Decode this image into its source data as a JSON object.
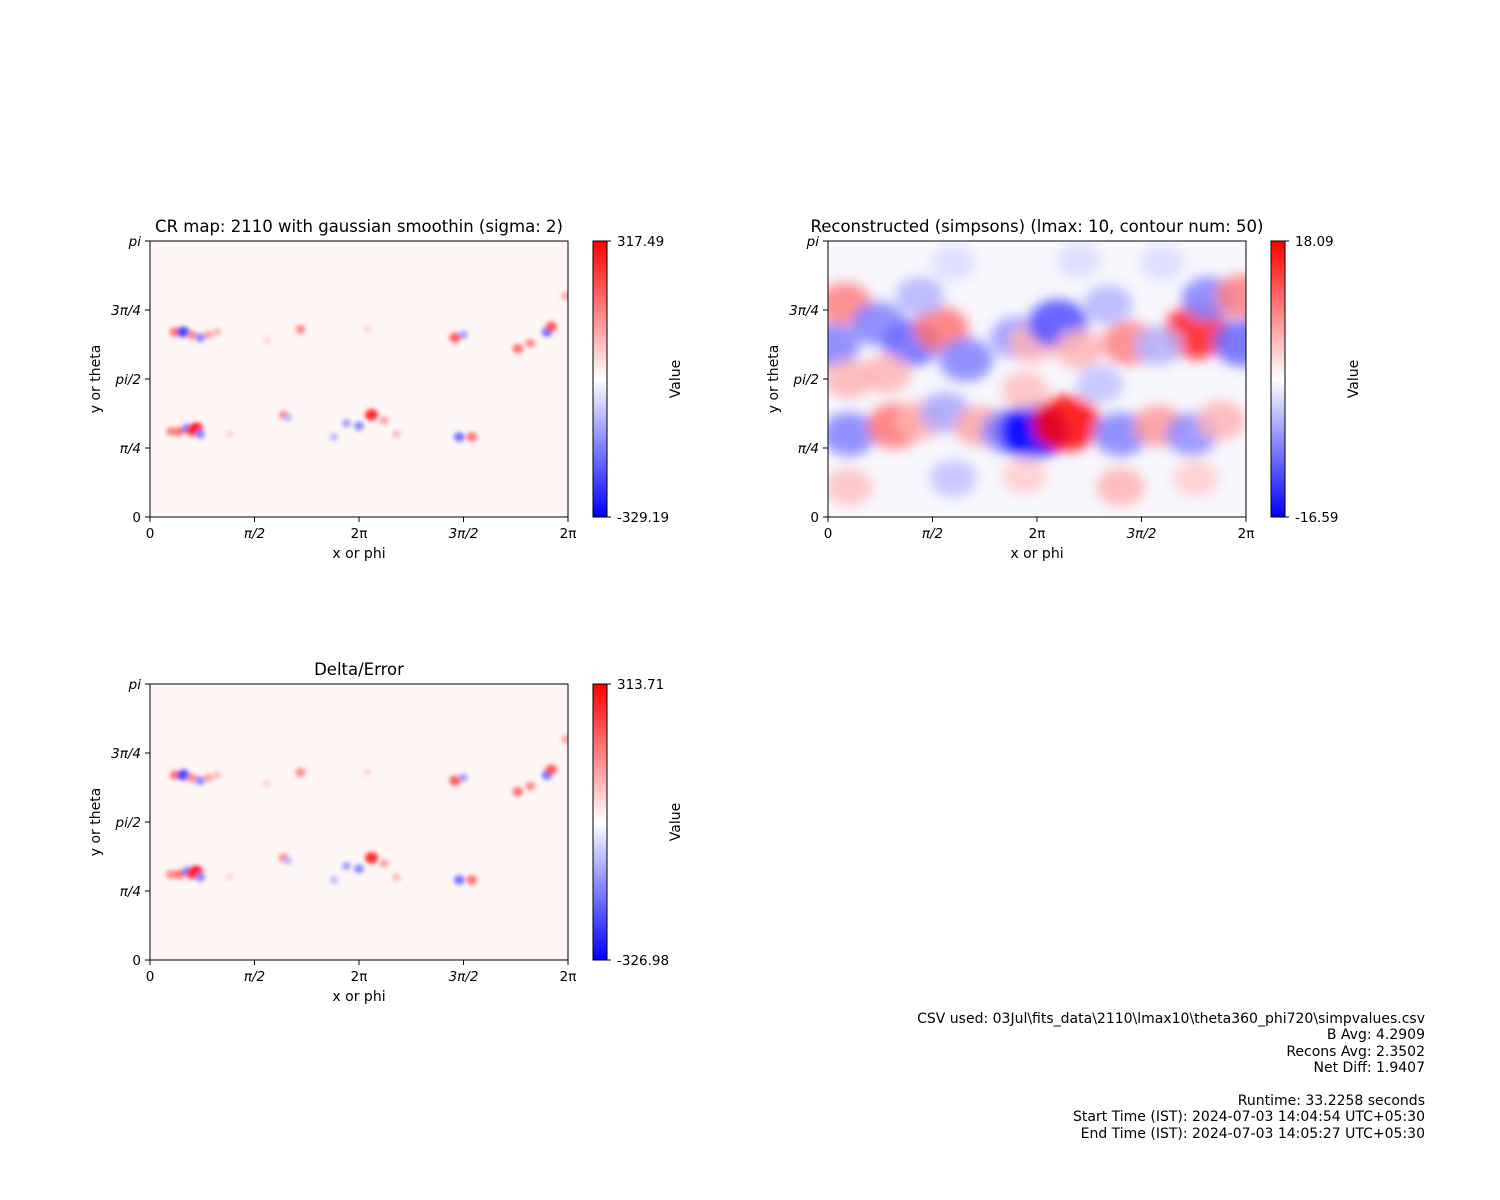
{
  "chart_data": [
    {
      "type": "heatmap",
      "title": "CR map: 2110 with gaussian smoothin (sigma: 2)",
      "xlabel": "x or phi",
      "ylabel": "y or theta",
      "x_ticks": [
        "0",
        "π/2",
        "2π",
        "3π/2",
        "2π"
      ],
      "y_ticks": [
        "0",
        "π/4",
        "pi/2",
        "3π/4",
        "pi"
      ],
      "colorbar": {
        "label": "Value",
        "min": -329.19,
        "max": 317.49,
        "min_label": "-329.19",
        "max_label": "317.49",
        "colormap": "bwr"
      },
      "features": [
        {
          "x": 0.06,
          "y": 0.67,
          "v": 0.6
        },
        {
          "x": 0.08,
          "y": 0.67,
          "v": -0.8
        },
        {
          "x": 0.1,
          "y": 0.66,
          "v": 0.5
        },
        {
          "x": 0.12,
          "y": 0.65,
          "v": -0.5
        },
        {
          "x": 0.14,
          "y": 0.66,
          "v": 0.4
        },
        {
          "x": 0.16,
          "y": 0.67,
          "v": 0.3
        },
        {
          "x": 0.28,
          "y": 0.64,
          "v": 0.2
        },
        {
          "x": 0.36,
          "y": 0.68,
          "v": 0.5
        },
        {
          "x": 0.52,
          "y": 0.68,
          "v": 0.2
        },
        {
          "x": 0.73,
          "y": 0.65,
          "v": 0.7
        },
        {
          "x": 0.75,
          "y": 0.66,
          "v": -0.4
        },
        {
          "x": 0.88,
          "y": 0.61,
          "v": 0.6
        },
        {
          "x": 0.91,
          "y": 0.63,
          "v": 0.5
        },
        {
          "x": 0.95,
          "y": 0.67,
          "v": -0.6
        },
        {
          "x": 0.96,
          "y": 0.69,
          "v": 0.7
        },
        {
          "x": 0.995,
          "y": 0.8,
          "v": 0.4
        },
        {
          "x": 0.05,
          "y": 0.31,
          "v": 0.5
        },
        {
          "x": 0.07,
          "y": 0.31,
          "v": 0.6
        },
        {
          "x": 0.09,
          "y": 0.32,
          "v": -0.6
        },
        {
          "x": 0.1,
          "y": 0.31,
          "v": 0.7
        },
        {
          "x": 0.11,
          "y": 0.32,
          "v": 1.0
        },
        {
          "x": 0.12,
          "y": 0.3,
          "v": -0.5
        },
        {
          "x": 0.32,
          "y": 0.37,
          "v": 0.5
        },
        {
          "x": 0.33,
          "y": 0.36,
          "v": -0.3
        },
        {
          "x": 0.47,
          "y": 0.34,
          "v": -0.4
        },
        {
          "x": 0.5,
          "y": 0.33,
          "v": -0.5
        },
        {
          "x": 0.53,
          "y": 0.37,
          "v": 0.9
        },
        {
          "x": 0.56,
          "y": 0.35,
          "v": 0.4
        },
        {
          "x": 0.59,
          "y": 0.3,
          "v": 0.3
        },
        {
          "x": 0.74,
          "y": 0.29,
          "v": -0.6
        },
        {
          "x": 0.77,
          "y": 0.29,
          "v": 0.6
        },
        {
          "x": 0.19,
          "y": 0.3,
          "v": 0.2
        },
        {
          "x": 0.44,
          "y": 0.29,
          "v": -0.3
        }
      ]
    },
    {
      "type": "heatmap",
      "title": "Reconstructed (simpsons) (lmax: 10, contour num: 50)",
      "xlabel": "x or phi",
      "ylabel": "y or theta",
      "x_ticks": [
        "0",
        "π/2",
        "2π",
        "3π/2",
        "2π"
      ],
      "y_ticks": [
        "0",
        "π/4",
        "pi/2",
        "3π/4",
        "pi"
      ],
      "colorbar": {
        "label": "Value",
        "min": -16.59,
        "max": 18.09,
        "min_label": "-16.59",
        "max_label": "18.09",
        "colormap": "bwr"
      },
      "features": [
        {
          "x": 0.04,
          "y": 0.77,
          "v": 0.5
        },
        {
          "x": 0.01,
          "y": 0.62,
          "v": -0.5
        },
        {
          "x": 0.12,
          "y": 0.7,
          "v": -0.5
        },
        {
          "x": 0.2,
          "y": 0.63,
          "v": -0.6
        },
        {
          "x": 0.27,
          "y": 0.68,
          "v": 0.55
        },
        {
          "x": 0.33,
          "y": 0.57,
          "v": -0.5
        },
        {
          "x": 0.22,
          "y": 0.8,
          "v": -0.3
        },
        {
          "x": 0.14,
          "y": 0.52,
          "v": 0.3
        },
        {
          "x": 0.05,
          "y": 0.5,
          "v": 0.3
        },
        {
          "x": 0.45,
          "y": 0.65,
          "v": -0.4
        },
        {
          "x": 0.49,
          "y": 0.63,
          "v": 0.3
        },
        {
          "x": 0.55,
          "y": 0.7,
          "v": -0.7
        },
        {
          "x": 0.6,
          "y": 0.61,
          "v": 0.3
        },
        {
          "x": 0.72,
          "y": 0.63,
          "v": 0.5
        },
        {
          "x": 0.67,
          "y": 0.77,
          "v": -0.3
        },
        {
          "x": 0.88,
          "y": 0.67,
          "v": 0.9
        },
        {
          "x": 0.91,
          "y": 0.79,
          "v": -0.5
        },
        {
          "x": 0.99,
          "y": 0.8,
          "v": 0.5
        },
        {
          "x": 0.99,
          "y": 0.63,
          "v": -0.6
        },
        {
          "x": 0.79,
          "y": 0.62,
          "v": -0.3
        },
        {
          "x": 0.05,
          "y": 0.3,
          "v": -0.5
        },
        {
          "x": 0.16,
          "y": 0.33,
          "v": 0.55
        },
        {
          "x": 0.22,
          "y": 0.35,
          "v": 0.3
        },
        {
          "x": 0.28,
          "y": 0.38,
          "v": -0.35
        },
        {
          "x": 0.36,
          "y": 0.33,
          "v": 0.35
        },
        {
          "x": 0.43,
          "y": 0.31,
          "v": -0.5
        },
        {
          "x": 0.49,
          "y": 0.31,
          "v": -1.0
        },
        {
          "x": 0.57,
          "y": 0.34,
          "v": 1.0
        },
        {
          "x": 0.7,
          "y": 0.3,
          "v": -0.5
        },
        {
          "x": 0.79,
          "y": 0.33,
          "v": 0.4
        },
        {
          "x": 0.87,
          "y": 0.3,
          "v": -0.45
        },
        {
          "x": 0.94,
          "y": 0.35,
          "v": 0.3
        },
        {
          "x": 0.47,
          "y": 0.46,
          "v": 0.25
        },
        {
          "x": 0.65,
          "y": 0.48,
          "v": -0.25
        },
        {
          "x": 0.05,
          "y": 0.11,
          "v": 0.25
        },
        {
          "x": 0.3,
          "y": 0.14,
          "v": -0.25
        },
        {
          "x": 0.47,
          "y": 0.15,
          "v": 0.2
        },
        {
          "x": 0.7,
          "y": 0.11,
          "v": 0.3
        },
        {
          "x": 0.88,
          "y": 0.14,
          "v": 0.2
        },
        {
          "x": 0.6,
          "y": 0.93,
          "v": -0.15
        },
        {
          "x": 0.3,
          "y": 0.92,
          "v": -0.15
        },
        {
          "x": 0.8,
          "y": 0.92,
          "v": -0.15
        }
      ]
    },
    {
      "type": "heatmap",
      "title": "Delta/Error",
      "xlabel": "x or phi",
      "ylabel": "y or theta",
      "x_ticks": [
        "0",
        "π/2",
        "2π",
        "3π/2",
        "2π"
      ],
      "y_ticks": [
        "0",
        "π/4",
        "pi/2",
        "3π/4",
        "pi"
      ],
      "colorbar": {
        "label": "Value",
        "min": -326.98,
        "max": 313.71,
        "min_label": "-326.98",
        "max_label": "313.71",
        "colormap": "bwr"
      },
      "features": [
        {
          "x": 0.06,
          "y": 0.67,
          "v": 0.6
        },
        {
          "x": 0.08,
          "y": 0.67,
          "v": -0.8
        },
        {
          "x": 0.1,
          "y": 0.66,
          "v": 0.5
        },
        {
          "x": 0.12,
          "y": 0.65,
          "v": -0.5
        },
        {
          "x": 0.14,
          "y": 0.66,
          "v": 0.4
        },
        {
          "x": 0.16,
          "y": 0.67,
          "v": 0.3
        },
        {
          "x": 0.28,
          "y": 0.64,
          "v": 0.2
        },
        {
          "x": 0.36,
          "y": 0.68,
          "v": 0.5
        },
        {
          "x": 0.52,
          "y": 0.68,
          "v": 0.2
        },
        {
          "x": 0.73,
          "y": 0.65,
          "v": 0.7
        },
        {
          "x": 0.75,
          "y": 0.66,
          "v": -0.4
        },
        {
          "x": 0.88,
          "y": 0.61,
          "v": 0.6
        },
        {
          "x": 0.91,
          "y": 0.63,
          "v": 0.5
        },
        {
          "x": 0.95,
          "y": 0.67,
          "v": -0.6
        },
        {
          "x": 0.96,
          "y": 0.69,
          "v": 0.7
        },
        {
          "x": 0.995,
          "y": 0.8,
          "v": 0.4
        },
        {
          "x": 0.05,
          "y": 0.31,
          "v": 0.5
        },
        {
          "x": 0.07,
          "y": 0.31,
          "v": 0.6
        },
        {
          "x": 0.09,
          "y": 0.32,
          "v": -0.6
        },
        {
          "x": 0.1,
          "y": 0.31,
          "v": 0.7
        },
        {
          "x": 0.11,
          "y": 0.32,
          "v": 1.0
        },
        {
          "x": 0.12,
          "y": 0.3,
          "v": -0.5
        },
        {
          "x": 0.32,
          "y": 0.37,
          "v": 0.5
        },
        {
          "x": 0.33,
          "y": 0.36,
          "v": -0.3
        },
        {
          "x": 0.47,
          "y": 0.34,
          "v": -0.4
        },
        {
          "x": 0.5,
          "y": 0.33,
          "v": -0.5
        },
        {
          "x": 0.53,
          "y": 0.37,
          "v": 0.9
        },
        {
          "x": 0.56,
          "y": 0.35,
          "v": 0.4
        },
        {
          "x": 0.59,
          "y": 0.3,
          "v": 0.3
        },
        {
          "x": 0.74,
          "y": 0.29,
          "v": -0.6
        },
        {
          "x": 0.77,
          "y": 0.29,
          "v": 0.6
        },
        {
          "x": 0.19,
          "y": 0.3,
          "v": 0.2
        },
        {
          "x": 0.44,
          "y": 0.29,
          "v": -0.3
        }
      ]
    }
  ],
  "info": {
    "csv_used": "CSV used: 03Jul\\fits_data\\2110\\lmax10\\theta360_phi720\\simpvalues.csv",
    "b_avg": "B Avg: 4.2909",
    "recons_avg": "Recons Avg: 2.3502",
    "net_diff": "Net Diff: 1.9407",
    "runtime": "Runtime: 33.2258 seconds",
    "start_time": "Start Time (IST): 2024-07-03 14:04:54 UTC+05:30",
    "end_time": "End Time (IST): 2024-07-03 14:05:27 UTC+05:30"
  }
}
